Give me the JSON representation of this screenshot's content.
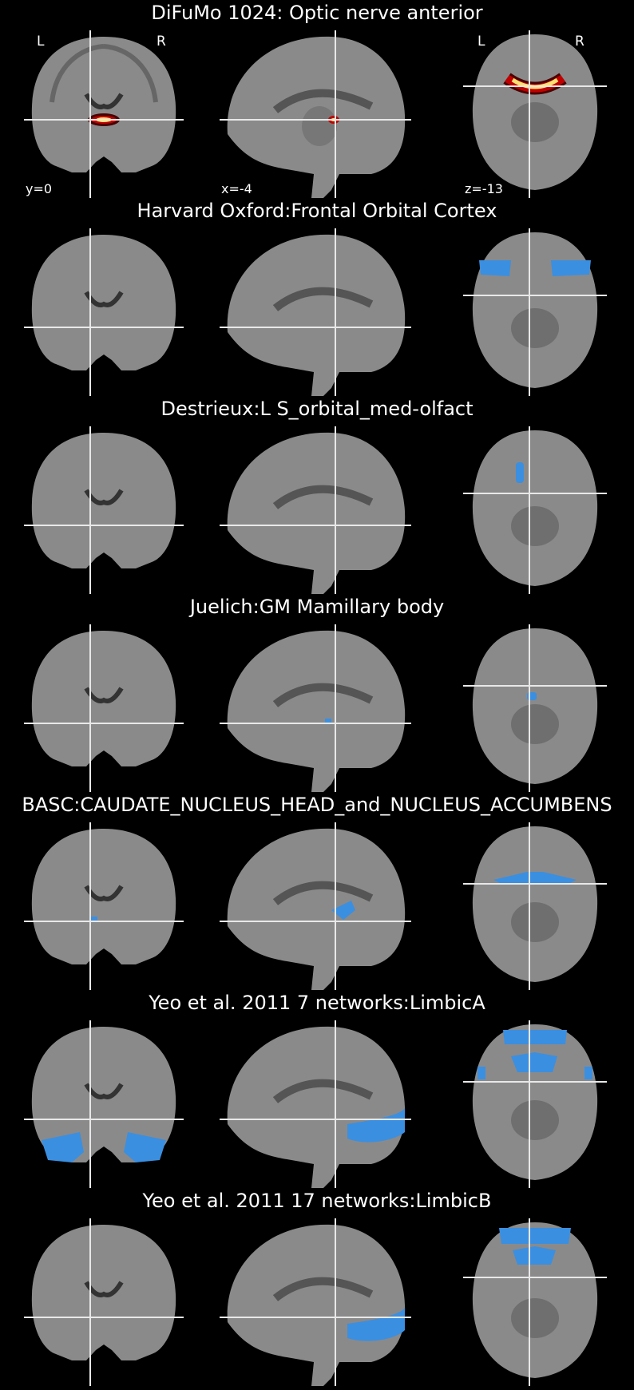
{
  "colors": {
    "background": "#000000",
    "brain": "#8a8a8a",
    "crosshair": "#e8e8e8",
    "atlas_overlay": "#3b8fe0",
    "difumo_overlay_outer": "#c00000",
    "difumo_overlay_inner": "#ffe070"
  },
  "orientation_labels": {
    "left": "L",
    "right": "R"
  },
  "coordinates": {
    "coronal": "y=0",
    "sagittal": "x=-4",
    "axial": "z=-13"
  },
  "panels": [
    {
      "title": "DiFuMo 1024: Optic nerve anterior",
      "overlay": "hot-colormap"
    },
    {
      "title": "Harvard Oxford:Frontal Orbital Cortex",
      "overlay": "blue"
    },
    {
      "title": "Destrieux:L S_orbital_med-olfact",
      "overlay": "blue"
    },
    {
      "title": "Juelich:GM Mamillary body",
      "overlay": "blue"
    },
    {
      "title": "BASC:CAUDATE_NUCLEUS_HEAD_and_NUCLEUS_ACCUMBENS",
      "overlay": "blue"
    },
    {
      "title": "Yeo et al. 2011 7 networks:LimbicA",
      "overlay": "blue"
    },
    {
      "title": "Yeo et al. 2011 17 networks:LimbicB",
      "overlay": "blue"
    }
  ]
}
